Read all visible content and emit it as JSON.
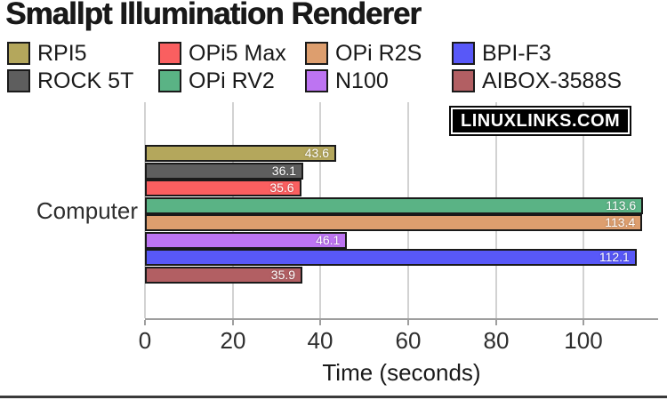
{
  "page": {
    "title": "Smallpt Illumination Renderer",
    "watermark": "LINUXLINKS.COM"
  },
  "chart_data": {
    "type": "bar",
    "orientation": "horizontal",
    "title": "Smallpt Illumination Renderer",
    "categories": [
      "Computer"
    ],
    "series": [
      {
        "name": "RPI5",
        "value": 43.6,
        "color": "#b4a75c"
      },
      {
        "name": "ROCK 5T",
        "value": 36.1,
        "color": "#5e5e5e"
      },
      {
        "name": "OPi5 Max",
        "value": 35.6,
        "color": "#fa5f60"
      },
      {
        "name": "OPi RV2",
        "value": 113.6,
        "color": "#5ab385"
      },
      {
        "name": "OPi R2S",
        "value": 113.4,
        "color": "#dd9e6e"
      },
      {
        "name": "N100",
        "value": 46.1,
        "color": "#bd74f2"
      },
      {
        "name": "BPI-F3",
        "value": 112.1,
        "color": "#5858f8"
      },
      {
        "name": "AIBOX-3588S",
        "value": 35.9,
        "color": "#b25f63"
      }
    ],
    "xlabel": "Time (seconds)",
    "xticks": [
      0,
      20,
      40,
      60,
      80,
      100
    ],
    "xlim": [
      0,
      117
    ],
    "grid": true,
    "legend_position": "top",
    "value_label_color": "#ffffff",
    "bar_border_color": "#1a1a1a"
  }
}
